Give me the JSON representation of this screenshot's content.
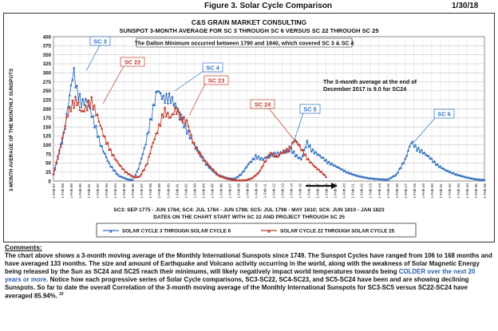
{
  "header": {
    "figure_title": "Figure 3.  Solar Cycle Comparison",
    "date": "1/30/18"
  },
  "chart_data": {
    "type": "line",
    "title": "C&S GRAIN MARKET CONSULTING",
    "subtitle": "SUNSPOT 3-MONTH AVERAGE FOR SC 3 THROUGH SC 6 VERSUS SC 22 THROUGH SC 25",
    "ylabel": "3-MONTH AVERAGE OF THE MONTHLY SUNSPOTS",
    "xlabel": "DATES ON THE CHART START WITH SC 22 AND PROJECT THROUGH SC 25",
    "ylim": [
      0,
      400
    ],
    "yticks": [
      0,
      25,
      50,
      75,
      100,
      125,
      150,
      175,
      200,
      225,
      250,
      275,
      300,
      325,
      350,
      375,
      400
    ],
    "grid": true,
    "x_tick_labels": [
      "1-Feb-87",
      "1-Feb-88",
      "1-Feb-89",
      "1-Feb-90",
      "1-Feb-91",
      "1-Feb-92",
      "1-Feb-93",
      "1-Feb-94",
      "1-Feb-95",
      "1-Feb-96",
      "1-Feb-97",
      "1-Feb-98",
      "1-Feb-99",
      "1-Feb-00",
      "1-Feb-01",
      "1-Feb-02",
      "1-Feb-03",
      "1-Feb-04",
      "1-Feb-05",
      "1-Feb-06",
      "1-Feb-07",
      "1-Feb-08",
      "1-Feb-09",
      "1-Feb-10",
      "1-Feb-11",
      "1-Feb-12",
      "1-Feb-13",
      "1-Feb-14",
      "1-Feb-15",
      "1-Feb-16",
      "1-Feb-17",
      "1-Feb-18",
      "1-Feb-19",
      "1-Feb-20",
      "1-Feb-21",
      "1-Feb-22",
      "1-Feb-23",
      "1-Feb-24",
      "1-Feb-25",
      "1-Feb-26",
      "1-Feb-27",
      "1-Feb-28",
      "1-Feb-29",
      "1-Feb-30",
      "1-Feb-31",
      "1-Feb-32",
      "1-Feb-33",
      "1-Feb-34",
      "1-Feb-35",
      "1-Feb-36"
    ],
    "cycle_note": "SC3: SEP 1775 - JUN 1784; SC4: JUL 1784 - JUN 1798; SC5: JUL 1798 - MAY 1810; SC6: JUN 1810 - JAN 1823",
    "series": [
      {
        "name": "SOLAR CYCLE 3 THROUGH SOLAR CYCLE 6",
        "color": "#2f6fc0",
        "keypoints": [
          [
            1987.0,
            20
          ],
          [
            1988.2,
            130
          ],
          [
            1988.9,
            248
          ],
          [
            1989.3,
            308
          ],
          [
            1989.6,
            255
          ],
          [
            1990.2,
            215
          ],
          [
            1990.8,
            225
          ],
          [
            1991.4,
            180
          ],
          [
            1992.4,
            98
          ],
          [
            1993.4,
            45
          ],
          [
            1994.4,
            15
          ],
          [
            1995.4,
            5
          ],
          [
            1996.0,
            3
          ],
          [
            1996.6,
            30
          ],
          [
            1997.4,
            95
          ],
          [
            1998.2,
            185
          ],
          [
            1998.8,
            255
          ],
          [
            1999.5,
            228
          ],
          [
            2000.3,
            230
          ],
          [
            2001.0,
            205
          ],
          [
            2002.0,
            148
          ],
          [
            2003.2,
            92
          ],
          [
            2004.4,
            45
          ],
          [
            2005.6,
            18
          ],
          [
            2006.8,
            8
          ],
          [
            2007.6,
            6
          ],
          [
            2008.4,
            20
          ],
          [
            2009.2,
            48
          ],
          [
            2010.0,
            68
          ],
          [
            2010.8,
            60
          ],
          [
            2011.6,
            72
          ],
          [
            2012.4,
            75
          ],
          [
            2013.2,
            80
          ],
          [
            2014.0,
            88
          ],
          [
            2014.6,
            70
          ],
          [
            2015.2,
            60
          ],
          [
            2015.8,
            108
          ],
          [
            2016.4,
            85
          ],
          [
            2017.3,
            70
          ],
          [
            2018.2,
            52
          ],
          [
            2019.2,
            40
          ],
          [
            2020.4,
            24
          ],
          [
            2021.6,
            14
          ],
          [
            2022.8,
            8
          ],
          [
            2024.0,
            5
          ],
          [
            2025.0,
            4
          ],
          [
            2026.0,
            18
          ],
          [
            2027.0,
            60
          ],
          [
            2027.7,
            110
          ],
          [
            2028.3,
            90
          ],
          [
            2029.0,
            80
          ],
          [
            2029.8,
            65
          ],
          [
            2030.6,
            45
          ],
          [
            2031.6,
            30
          ],
          [
            2032.8,
            18
          ],
          [
            2034.0,
            10
          ],
          [
            2035.0,
            5
          ],
          [
            2036.0,
            3
          ]
        ]
      },
      {
        "name": "SOLAR CYCLE 22 THROUGH SOLAR CYCLE 25",
        "color": "#c0392b",
        "keypoints": [
          [
            1987.0,
            18
          ],
          [
            1987.8,
            95
          ],
          [
            1988.6,
            185
          ],
          [
            1989.0,
            205
          ],
          [
            1989.6,
            225
          ],
          [
            1990.2,
            190
          ],
          [
            1990.8,
            205
          ],
          [
            1991.3,
            222
          ],
          [
            1992.0,
            180
          ],
          [
            1992.8,
            120
          ],
          [
            1993.6,
            78
          ],
          [
            1994.4,
            48
          ],
          [
            1995.2,
            25
          ],
          [
            1996.2,
            10
          ],
          [
            1996.8,
            12
          ],
          [
            1997.6,
            45
          ],
          [
            1998.3,
            105
          ],
          [
            1999.0,
            150
          ],
          [
            1999.6,
            195
          ],
          [
            2000.3,
            175
          ],
          [
            2000.9,
            200
          ],
          [
            2001.5,
            175
          ],
          [
            2002.2,
            165
          ],
          [
            2002.9,
            105
          ],
          [
            2003.8,
            70
          ],
          [
            2004.8,
            40
          ],
          [
            2005.8,
            15
          ],
          [
            2006.8,
            6
          ],
          [
            2007.8,
            2
          ],
          [
            2008.8,
            2
          ],
          [
            2009.6,
            8
          ],
          [
            2010.4,
            25
          ],
          [
            2011.2,
            60
          ],
          [
            2011.8,
            78
          ],
          [
            2012.4,
            65
          ],
          [
            2013.0,
            80
          ],
          [
            2013.6,
            85
          ],
          [
            2014.0,
            95
          ],
          [
            2014.4,
            115
          ],
          [
            2014.8,
            105
          ],
          [
            2015.4,
            80
          ],
          [
            2016.0,
            58
          ],
          [
            2016.8,
            38
          ],
          [
            2017.6,
            22
          ],
          [
            2018.0,
            12
          ]
        ]
      }
    ],
    "annotations": {
      "sc3": "SC 3",
      "sc4": "SC 4",
      "sc5": "SC 5",
      "sc6": "SC 6",
      "sc22": "SC 22",
      "sc23": "SC 23",
      "sc24": "SC 24",
      "dalton": "The Dalton Minimum occurred between 1790 and 1840, which covered SC 3 & SC 4",
      "avg_line1": "The 3-month average at the end of",
      "avg_line2": "December 2017 is 9.0 for SC24"
    }
  },
  "comments": {
    "heading": "Comments:",
    "part1": "The chart above shows a 3-month moving average of the Monthly International Sunspots since 1749. The Sunspot Cycles have ranged from 106 to 168 months and have averaged 133 months. The size and amount of Earthquake and Volcano activity occurring in the world, along with the weakness of Solar Magnetic Energy being released by the Sun as SC24 and SC25 reach their minimums, will likely negatively impact world temperatures towards being ",
    "highlight": "COLDER over the next 20 years or more.",
    "part2": " Notice how each progressive series of Solar Cycle comparisons, SC3-SC22, SC4-SC23, and SC5-SC24 have been and are showing declining Sunspots. So far to date the overall Correlation of the 3-month moving average of the Monthly International Sunspots for SC3-SC5 versus SC22-SC24 have averaged 85.94%.",
    "footnote": "10"
  }
}
